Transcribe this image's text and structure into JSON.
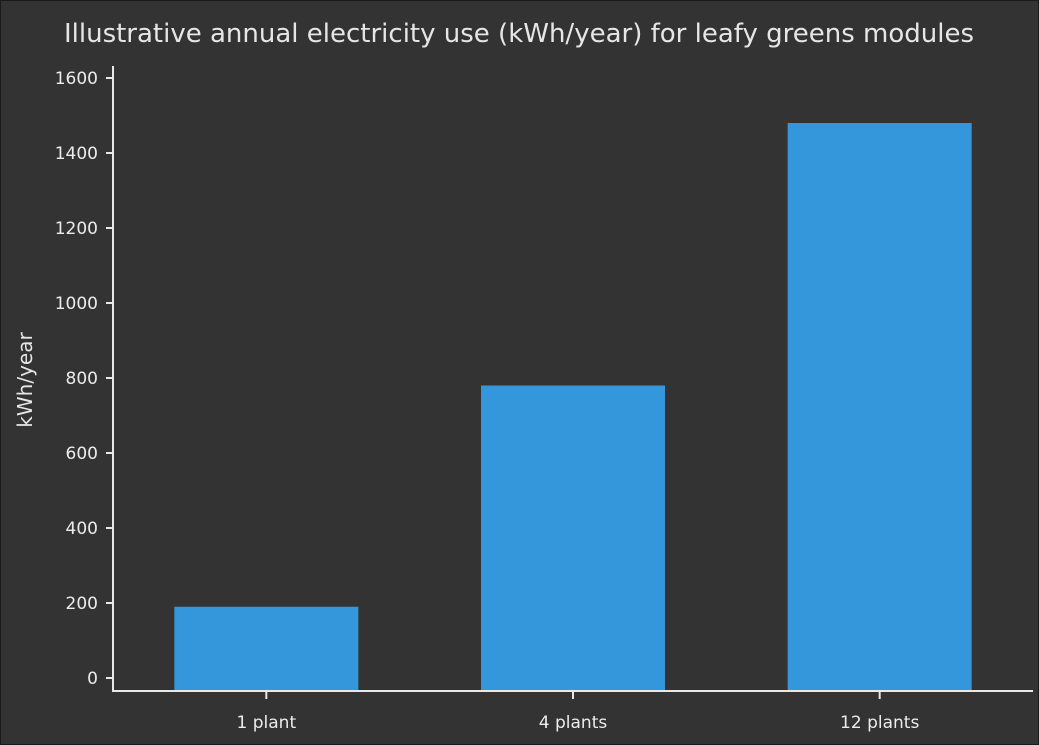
{
  "chart_data": {
    "type": "bar",
    "title": "Illustrative annual electricity use (kWh/year) for leafy greens modules",
    "xlabel": "",
    "ylabel": "kWh/year",
    "categories": [
      "1 plant",
      "4 plants",
      "12 plants"
    ],
    "values": [
      190,
      780,
      1480
    ],
    "ylim": [
      0,
      1600
    ],
    "yticks": [
      0,
      200,
      400,
      600,
      800,
      1000,
      1200,
      1400,
      1600
    ],
    "grid": false,
    "legend": "none",
    "colors": {
      "bar": "#3597db",
      "background": "#333333",
      "axis": "#e8e8e8",
      "text": "#e6e6e6"
    }
  }
}
